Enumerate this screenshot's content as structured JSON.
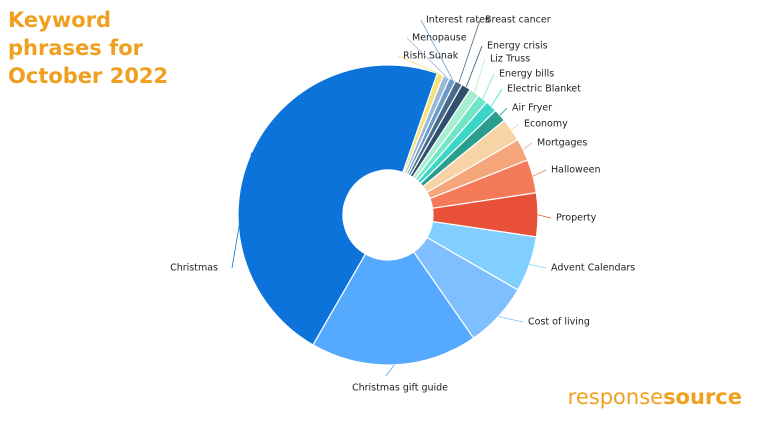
{
  "chart_data": {
    "type": "donut",
    "title": "Keyword phrases for October 2022",
    "categories": [
      "Christmas",
      "Rishi Sunak",
      "Menopause",
      "Interest rates",
      "Breast cancer",
      "Energy crisis",
      "Liz Truss",
      "Energy bills",
      "Electric Blanket",
      "Air Fryer",
      "Economy",
      "Mortgages",
      "Halloween",
      "Property",
      "Advent Calendars",
      "Cost of living",
      "Christmas gift guide"
    ],
    "values": [
      47,
      0.7,
      0.7,
      0.7,
      0.8,
      1,
      1.1,
      1.1,
      1.3,
      1.4,
      2.5,
      2.4,
      3.6,
      4.7,
      6,
      7,
      18
    ],
    "colors": [
      "#0b73d9",
      "#f5e07a",
      "#9ab8d8",
      "#6a9ac8",
      "#4a6a8a",
      "#2f4f6f",
      "#a6eed0",
      "#70e6c6",
      "#3cd6c8",
      "#2a9d8f",
      "#f8d3a5",
      "#f5a57a",
      "#f47a5a",
      "#e8503a",
      "#80cfff",
      "#7fbfff",
      "#55aaff"
    ]
  },
  "brand": [
    "response",
    "source"
  ]
}
